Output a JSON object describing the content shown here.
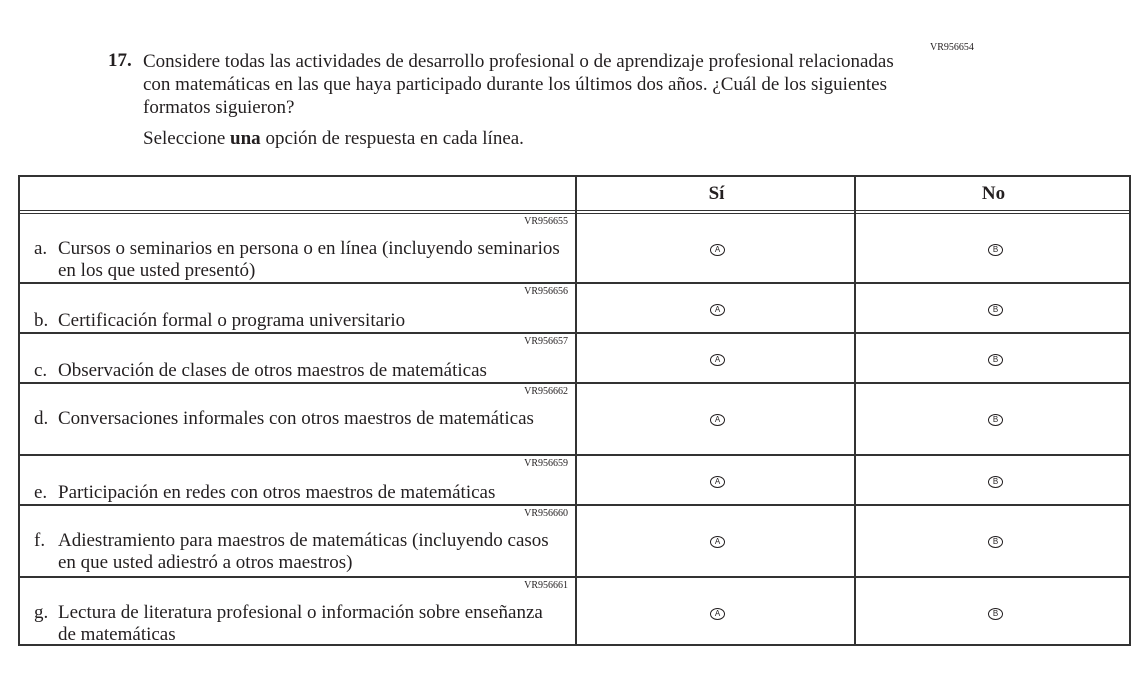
{
  "question": {
    "number": "17.",
    "code": "VR956654",
    "text": "Considere todas las actividades de desarrollo profesional o de aprendizaje profesional relacionadas con matemáticas en las que haya participado durante los últimos dos años. ¿Cuál de los siguientes formatos siguieron?",
    "instruction_pre": "Seleccione ",
    "instruction_bold": "una",
    "instruction_post": " opción de respuesta en cada línea."
  },
  "columns": {
    "yes": "Sí",
    "no": "No"
  },
  "bubbles": {
    "yes": "A",
    "no": "B"
  },
  "rows": [
    {
      "letter": "a.",
      "code": "VR956655",
      "text": "Cursos o seminarios en persona o en línea (incluyendo seminarios en los que usted presentó)"
    },
    {
      "letter": "b.",
      "code": "VR956656",
      "text": "Certificación formal o programa universitario"
    },
    {
      "letter": "c.",
      "code": "VR956657",
      "text": "Observación de clases de otros maestros de matemáticas"
    },
    {
      "letter": "d.",
      "code": "VR956662",
      "text": "Conversaciones informales con otros maestros de matemáticas"
    },
    {
      "letter": "e.",
      "code": "VR956659",
      "text": "Participación en redes con otros maestros de matemáticas"
    },
    {
      "letter": "f.",
      "code": "VR956660",
      "text": "Adiestramiento para maestros de matemáticas (incluyendo casos en que usted adiestró a otros maestros)"
    },
    {
      "letter": "g.",
      "code": "VR956661",
      "text": "Lectura de literatura profesional o información sobre enseñanza de matemáticas"
    }
  ]
}
